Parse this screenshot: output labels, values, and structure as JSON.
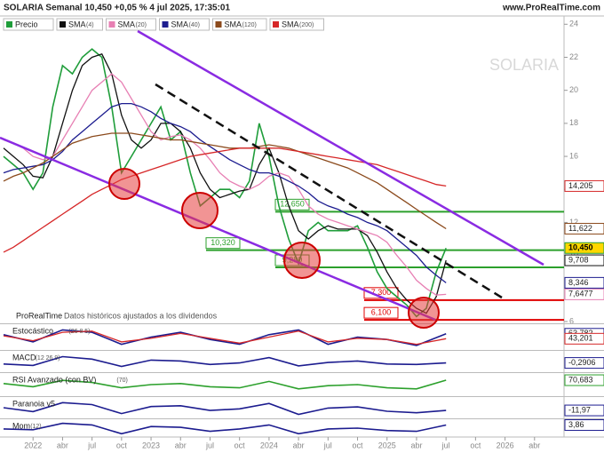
{
  "header": {
    "title": "SOLARIA Semanal 10,450 +0,05 % 4 jul 2025, 17:35:01",
    "site": "www.ProRealTime.com",
    "watermark": "SOLARIA"
  },
  "footer": {
    "brand": "ProRealTime",
    "note": "Datos históricos ajustados a los dividendos"
  },
  "chart_data": [
    {
      "type": "line",
      "xlim": [
        "2021-10",
        "2026-07"
      ],
      "xticks": [
        {
          "value": "2022-01",
          "label": "2022"
        },
        {
          "value": "2022-04",
          "label": "abr"
        },
        {
          "value": "2022-07",
          "label": "jul"
        },
        {
          "value": "2022-10",
          "label": "oct"
        },
        {
          "value": "2023-01",
          "label": "2023"
        },
        {
          "value": "2023-04",
          "label": "abr"
        },
        {
          "value": "2023-07",
          "label": "jul"
        },
        {
          "value": "2023-10",
          "label": "oct"
        },
        {
          "value": "2024-01",
          "label": "2024"
        },
        {
          "value": "2024-04",
          "label": "abr"
        },
        {
          "value": "2024-07",
          "label": "jul"
        },
        {
          "value": "2024-10",
          "label": "oct"
        },
        {
          "value": "2025-01",
          "label": "2025"
        },
        {
          "value": "2025-04",
          "label": "abr"
        },
        {
          "value": "2025-07",
          "label": "jul"
        },
        {
          "value": "2025-10",
          "label": "oct"
        },
        {
          "value": "2026-01",
          "label": "2026"
        },
        {
          "value": "2026-04",
          "label": "abr"
        }
      ],
      "ylim": [
        6,
        24.5
      ],
      "yticks": [
        6,
        8,
        10,
        12,
        14,
        16,
        18,
        20,
        22,
        24
      ],
      "x": [
        "2021-10",
        "2021-11",
        "2021-12",
        "2022-01",
        "2022-02",
        "2022-03",
        "2022-04",
        "2022-05",
        "2022-06",
        "2022-07",
        "2022-08",
        "2022-09",
        "2022-10",
        "2022-11",
        "2022-12",
        "2023-01",
        "2023-02",
        "2023-03",
        "2023-04",
        "2023-05",
        "2023-06",
        "2023-07",
        "2023-08",
        "2023-09",
        "2023-10",
        "2023-11",
        "2023-12",
        "2024-01",
        "2024-02",
        "2024-03",
        "2024-04",
        "2024-05",
        "2024-06",
        "2024-07",
        "2024-08",
        "2024-09",
        "2024-10",
        "2024-11",
        "2024-12",
        "2025-01",
        "2025-02",
        "2025-03",
        "2025-04",
        "2025-05",
        "2025-06",
        "2025-07"
      ],
      "series": [
        {
          "name": "Precio",
          "color": "#1f9d3a",
          "last_label": "10,450",
          "values": [
            16,
            15.5,
            15,
            14,
            15,
            19,
            21.5,
            21,
            22,
            22.5,
            22,
            19,
            15,
            16,
            17,
            18,
            19,
            17,
            17.5,
            15,
            13,
            13.5,
            14,
            14,
            13.5,
            14.5,
            18,
            16,
            13,
            11,
            9.5,
            11.5,
            12,
            11.5,
            11.5,
            11.5,
            11.8,
            10.5,
            9,
            8,
            7.5,
            7,
            6.3,
            6.8,
            9,
            10.45
          ]
        },
        {
          "name": "SMA",
          "params": "(4)",
          "color": "#111111",
          "last_label": "9,708",
          "values": [
            16.5,
            16,
            15.5,
            14.8,
            14.7,
            16,
            18,
            20,
            21.5,
            22,
            22.2,
            21,
            18.5,
            17,
            16.5,
            17,
            18,
            18,
            17.5,
            16.5,
            15,
            14,
            13.5,
            13.7,
            13.9,
            14,
            15.5,
            16.5,
            15,
            13,
            11.5,
            11,
            11.5,
            11.8,
            11.6,
            11.6,
            11.6,
            11.2,
            10.2,
            9,
            8,
            7.3,
            6.8,
            6.5,
            7.5,
            9.708
          ]
        },
        {
          "name": "SMA",
          "params": "(20)",
          "color": "#e77fb3",
          "last_label": "7,6477",
          "values": [
            17,
            16.8,
            16.5,
            16,
            15.8,
            16,
            17,
            18,
            19,
            20,
            20.5,
            21,
            20.5,
            19.5,
            18.5,
            17.5,
            17,
            17.2,
            17.3,
            17,
            16.5,
            15.8,
            15,
            14.5,
            14.2,
            14,
            14.3,
            14.8,
            15,
            14.8,
            14,
            13,
            12.5,
            12.2,
            12,
            11.8,
            11.6,
            11.4,
            11.2,
            10.8,
            10,
            9.3,
            8.5,
            8,
            7.6,
            7.6477
          ]
        },
        {
          "name": "SMA",
          "params": "(40)",
          "color": "#1c1c8f",
          "last_label": "8,346",
          "values": [
            15,
            15.2,
            15.3,
            15.4,
            15.5,
            15.8,
            16.3,
            17,
            17.5,
            18,
            18.5,
            19,
            19.2,
            19.2,
            19,
            18.7,
            18.3,
            18,
            17.8,
            17.5,
            17,
            16.6,
            16.2,
            15.8,
            15.5,
            15.2,
            15,
            15,
            14.8,
            14.5,
            14.2,
            13.8,
            13.3,
            13,
            12.8,
            12.5,
            12.3,
            12,
            11.8,
            11.5,
            11,
            10.5,
            10,
            9.3,
            8.8,
            8.346
          ]
        },
        {
          "name": "SMA",
          "params": "(120)",
          "color": "#8b4a1c",
          "last_label": "11,622",
          "values": [
            14.5,
            14.8,
            15,
            15.3,
            15.6,
            16,
            16.4,
            16.8,
            17,
            17.2,
            17.3,
            17.4,
            17.4,
            17.4,
            17.3,
            17.2,
            17.1,
            17,
            17,
            16.9,
            16.8,
            16.7,
            16.6,
            16.5,
            16.5,
            16.5,
            16.6,
            16.7,
            16.6,
            16.5,
            16.3,
            16.1,
            15.9,
            15.7,
            15.5,
            15.3,
            15,
            14.7,
            14.4,
            14,
            13.6,
            13.2,
            12.8,
            12.4,
            12,
            11.622
          ]
        },
        {
          "name": "SMA",
          "params": "(200)",
          "color": "#d62728",
          "last_label": "14,205",
          "values": [
            10.2,
            10.5,
            10.9,
            11.3,
            11.7,
            12.1,
            12.5,
            12.9,
            13.3,
            13.7,
            14,
            14.3,
            14.6,
            14.8,
            15,
            15.2,
            15.4,
            15.6,
            15.8,
            16,
            16.1,
            16.2,
            16.3,
            16.4,
            16.5,
            16.5,
            16.5,
            16.5,
            16.5,
            16.4,
            16.3,
            16.2,
            16.1,
            16,
            15.9,
            15.8,
            15.7,
            15.6,
            15.5,
            15.3,
            15.1,
            14.9,
            14.7,
            14.5,
            14.3,
            14.205
          ]
        }
      ],
      "levels": [
        {
          "value": 12.65,
          "label": "12,650",
          "color": "#2ca02c"
        },
        {
          "value": 10.32,
          "label": "10,320",
          "color": "#2ca02c"
        },
        {
          "value": 9.28,
          "label": "9,280",
          "color": "#2ca02c"
        },
        {
          "value": 7.3,
          "label": "7,300",
          "color": "#e00000"
        },
        {
          "value": 6.1,
          "label": "6,100",
          "color": "#e00000"
        }
      ]
    },
    {
      "type": "line",
      "title": "Estocástico",
      "params": "(26 8 5)",
      "xlim": [
        "2021-10",
        "2026-07"
      ],
      "ylim": [
        0,
        100
      ],
      "x": [
        "2021-10",
        "2022-01",
        "2022-04",
        "2022-07",
        "2022-10",
        "2023-01",
        "2023-04",
        "2023-07",
        "2023-10",
        "2024-01",
        "2024-04",
        "2024-07",
        "2024-10",
        "2025-01",
        "2025-04",
        "2025-07"
      ],
      "series": [
        {
          "color": "#1c1c8f",
          "last_label": "63,782",
          "values": [
            60,
            30,
            80,
            70,
            20,
            50,
            70,
            40,
            20,
            60,
            80,
            20,
            50,
            40,
            15,
            63.782
          ]
        },
        {
          "color": "#d62728",
          "last_label": "43,201",
          "values": [
            55,
            35,
            70,
            75,
            30,
            45,
            65,
            45,
            25,
            50,
            75,
            30,
            45,
            40,
            20,
            43.201
          ]
        }
      ]
    },
    {
      "type": "line",
      "title": "MACD",
      "params": "(12 26 9)",
      "xlim": [
        "2021-10",
        "2026-07"
      ],
      "ylim": [
        -2,
        2
      ],
      "x": [
        "2021-10",
        "2022-01",
        "2022-04",
        "2022-07",
        "2022-10",
        "2023-01",
        "2023-04",
        "2023-07",
        "2023-10",
        "2024-01",
        "2024-04",
        "2024-07",
        "2024-10",
        "2025-01",
        "2025-04",
        "2025-07"
      ],
      "series": [
        {
          "color": "#1c1c8f",
          "last_label": "-0,2906",
          "values": [
            -0.5,
            -0.8,
            1,
            0.5,
            -1,
            0.3,
            0.1,
            -0.6,
            -0.3,
            0.8,
            -0.9,
            -0.2,
            0.1,
            -0.5,
            -0.6,
            -0.2906
          ]
        }
      ]
    },
    {
      "type": "line",
      "title": "RSI Avanzado (con BV)",
      "params": "(70)",
      "xlim": [
        "2021-10",
        "2026-07"
      ],
      "ylim": [
        0,
        100
      ],
      "x": [
        "2021-10",
        "2022-01",
        "2022-04",
        "2022-07",
        "2022-10",
        "2023-01",
        "2023-04",
        "2023-07",
        "2023-10",
        "2024-01",
        "2024-04",
        "2024-07",
        "2024-10",
        "2025-01",
        "2025-04",
        "2025-07"
      ],
      "series": [
        {
          "color": "#2ca02c",
          "last_label": "70,683",
          "values": [
            55,
            40,
            70,
            60,
            35,
            50,
            55,
            40,
            35,
            65,
            30,
            45,
            50,
            35,
            30,
            70.683
          ]
        }
      ]
    },
    {
      "type": "line",
      "title": "Paranoia v5",
      "xlim": [
        "2021-10",
        "2026-07"
      ],
      "ylim": [
        -30,
        20
      ],
      "x": [
        "2021-10",
        "2022-01",
        "2022-04",
        "2022-07",
        "2022-10",
        "2023-01",
        "2023-04",
        "2023-07",
        "2023-10",
        "2024-01",
        "2024-04",
        "2024-07",
        "2024-10",
        "2025-01",
        "2025-04",
        "2025-07"
      ],
      "series": [
        {
          "color": "#1c1c8f",
          "last_label": "-11,97",
          "values": [
            -5,
            -15,
            8,
            3,
            -20,
            -2,
            0,
            -12,
            -8,
            6,
            -22,
            -6,
            -3,
            -14,
            -18,
            -11.97
          ]
        }
      ]
    },
    {
      "type": "line",
      "title": "Mom",
      "params": "(12)",
      "xlim": [
        "2021-10",
        "2026-07"
      ],
      "ylim": [
        -10,
        10
      ],
      "x": [
        "2021-10",
        "2022-01",
        "2022-04",
        "2022-07",
        "2022-10",
        "2023-01",
        "2023-04",
        "2023-07",
        "2023-10",
        "2024-01",
        "2024-04",
        "2024-07",
        "2024-10",
        "2025-01",
        "2025-04",
        "2025-07"
      ],
      "series": [
        {
          "color": "#1c1c8f",
          "last_label": "3,86",
          "values": [
            -1,
            -2,
            6,
            4,
            -7,
            2,
            1,
            -4,
            -1,
            4,
            -7,
            -1,
            0,
            -3,
            -4,
            3.86
          ]
        }
      ]
    }
  ]
}
